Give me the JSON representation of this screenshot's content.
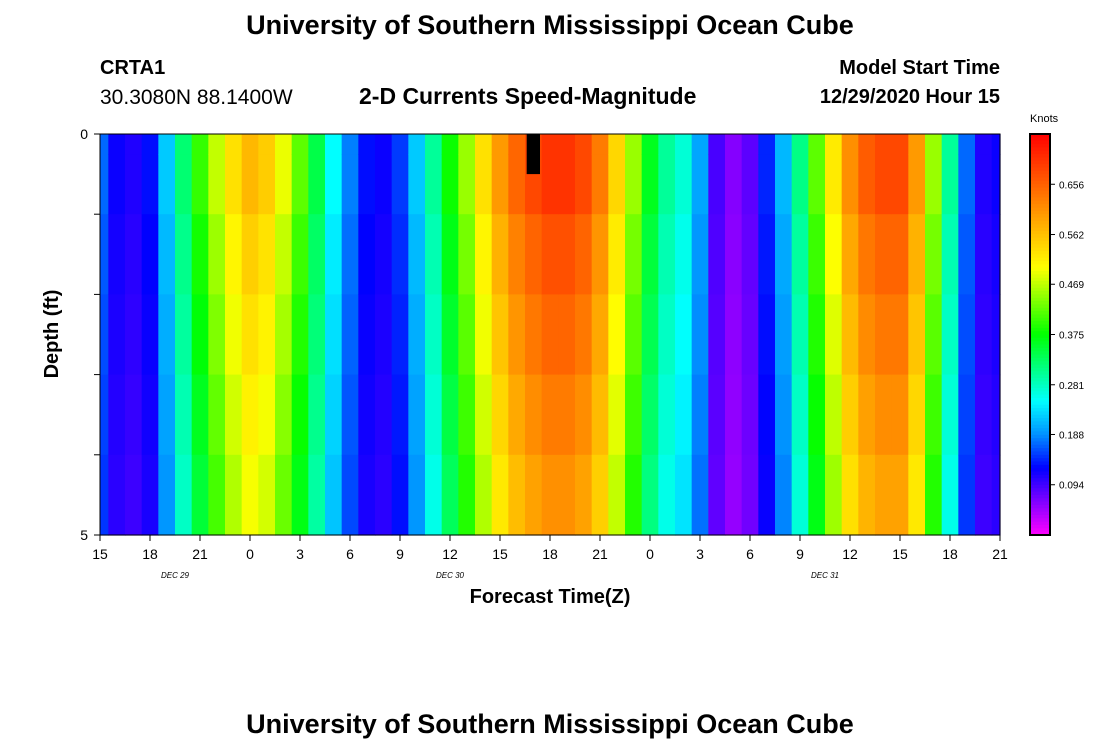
{
  "header": {
    "title": "University of Southern Mississippi Ocean Cube",
    "station_id": "CRTA1",
    "coordinates": "30.3080N 88.1400W",
    "plot_title": "2-D Currents Speed-Magnitude",
    "model_start_label": "Model Start Time",
    "model_start_value": "12/29/2020 Hour 15"
  },
  "footer": {
    "title": "University of Southern Mississippi Ocean Cube"
  },
  "chart_data": {
    "type": "heatmap",
    "title": "2-D Currents Speed-Magnitude",
    "xlabel": "Forecast Time(Z)",
    "ylabel": "Depth (ft)",
    "colorbar_label": "Knots",
    "colorbar_ticks": [
      "0.656",
      "0.562",
      "0.469",
      "0.375",
      "0.281",
      "0.188",
      "0.094"
    ],
    "value_range": [
      0,
      0.75
    ],
    "colormap": [
      "#ff00ff",
      "#8000ff",
      "#0000ff",
      "#0090ff",
      "#00ffff",
      "#00ff80",
      "#00ff00",
      "#80ff00",
      "#ffff00",
      "#ffc000",
      "#ff8000",
      "#ff4000",
      "#ff0000"
    ],
    "x_start_hour_offset": 0,
    "x_hours_total": 54,
    "x_ticks": [
      "15",
      "18",
      "21",
      "0",
      "3",
      "6",
      "9",
      "12",
      "15",
      "18",
      "21",
      "0",
      "3",
      "6",
      "9",
      "12",
      "15",
      "18",
      "21"
    ],
    "x_tick_step_hours": 3,
    "date_labels": [
      {
        "text": "DEC 29",
        "hour": 4.5
      },
      {
        "text": "DEC 30",
        "hour": 21
      },
      {
        "text": "DEC 31",
        "hour": 43.5
      }
    ],
    "y_ticks": [
      {
        "depth": 0,
        "label": "0"
      },
      {
        "depth": 5,
        "label": "5"
      }
    ],
    "ylim": [
      0,
      5
    ],
    "depth_levels": [
      0,
      0.5,
      1.5,
      2.5,
      3.5,
      4.5
    ],
    "missing_cell": {
      "hour": 26,
      "depth_range": [
        0,
        0.5
      ]
    },
    "hourly_speed_knots": [
      0.17,
      0.12,
      0.11,
      0.13,
      0.22,
      0.32,
      0.4,
      0.47,
      0.53,
      0.57,
      0.55,
      0.49,
      0.42,
      0.34,
      0.25,
      0.18,
      0.13,
      0.12,
      0.15,
      0.22,
      0.3,
      0.38,
      0.45,
      0.53,
      0.6,
      0.65,
      0.68,
      0.7,
      0.7,
      0.68,
      0.63,
      0.54,
      0.45,
      0.36,
      0.3,
      0.27,
      0.2,
      0.09,
      0.06,
      0.08,
      0.14,
      0.21,
      0.31,
      0.42,
      0.52,
      0.61,
      0.66,
      0.68,
      0.68,
      0.6,
      0.45,
      0.3,
      0.17,
      0.11,
      0.12
    ],
    "depth_factors": [
      1.0,
      1.0,
      0.96,
      0.93,
      0.9,
      0.87
    ]
  }
}
